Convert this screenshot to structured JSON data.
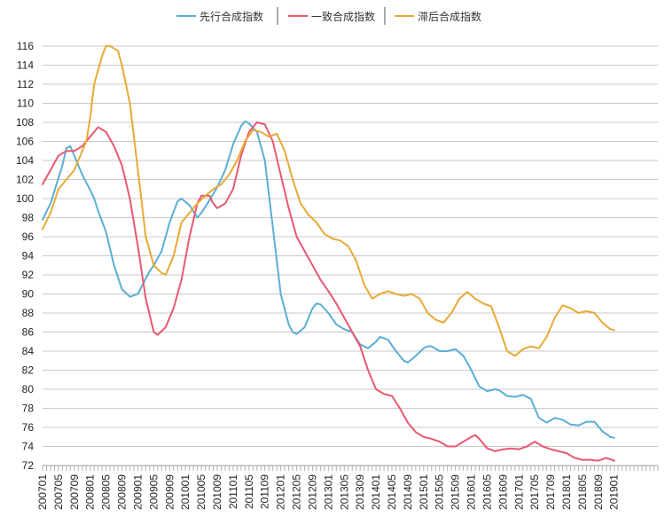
{
  "chart_data": {
    "type": "line",
    "title": "",
    "xlabel": "",
    "ylabel": "",
    "ylim": [
      72,
      116
    ],
    "y_ticks": [
      72,
      74,
      76,
      78,
      80,
      82,
      84,
      86,
      88,
      90,
      92,
      94,
      96,
      98,
      100,
      102,
      104,
      106,
      108,
      110,
      112,
      114,
      116
    ],
    "x_start": "2007-01",
    "x_end": "2019-12",
    "x_tick_labels": [
      "200701",
      "200705",
      "200709",
      "200801",
      "200805",
      "200809",
      "200901",
      "200905",
      "200909",
      "201001",
      "201005",
      "201009",
      "201101",
      "201105",
      "201109",
      "201201",
      "201205",
      "201209",
      "201301",
      "201305",
      "201309",
      "201401",
      "201405",
      "201409",
      "201501",
      "201505",
      "201509",
      "201601",
      "201605",
      "201609",
      "201701",
      "201705",
      "201709",
      "201801",
      "201805",
      "201809",
      "201901"
    ],
    "grid": "horizontal",
    "legend_position": "top-center",
    "series": [
      {
        "name": "先行合成指数",
        "color": "#5aaed6",
        "points": [
          [
            "2007-01",
            97.8
          ],
          [
            "2007-03",
            99.5
          ],
          [
            "2007-06",
            103.5
          ],
          [
            "2007-07",
            105.3
          ],
          [
            "2007-08",
            105.5
          ],
          [
            "2007-09",
            104.5
          ],
          [
            "2007-11",
            102.5
          ],
          [
            "2008-01",
            100.9
          ],
          [
            "2008-02",
            100.0
          ],
          [
            "2008-03",
            98.7
          ],
          [
            "2008-05",
            96.5
          ],
          [
            "2008-07",
            93.0
          ],
          [
            "2008-09",
            90.5
          ],
          [
            "2008-11",
            89.7
          ],
          [
            "2009-01",
            90.0
          ],
          [
            "2009-02",
            90.8
          ],
          [
            "2009-04",
            92.4
          ],
          [
            "2009-05",
            93.0
          ],
          [
            "2009-07",
            94.5
          ],
          [
            "2009-09",
            97.5
          ],
          [
            "2009-11",
            99.7
          ],
          [
            "2009-12",
            100.0
          ],
          [
            "2010-02",
            99.3
          ],
          [
            "2010-04",
            98.0
          ],
          [
            "2010-05",
            98.5
          ],
          [
            "2010-07",
            99.8
          ],
          [
            "2010-09",
            101.2
          ],
          [
            "2010-11",
            103.0
          ],
          [
            "2011-01",
            105.7
          ],
          [
            "2011-03",
            107.6
          ],
          [
            "2011-04",
            108.1
          ],
          [
            "2011-05",
            107.9
          ],
          [
            "2011-07",
            107.0
          ],
          [
            "2011-09",
            104.0
          ],
          [
            "2011-11",
            97.0
          ],
          [
            "2012-01",
            90.0
          ],
          [
            "2012-03",
            86.8
          ],
          [
            "2012-04",
            86.0
          ],
          [
            "2012-05",
            85.8
          ],
          [
            "2012-07",
            86.5
          ],
          [
            "2012-08",
            87.5
          ],
          [
            "2012-09",
            88.5
          ],
          [
            "2012-10",
            89.0
          ],
          [
            "2012-11",
            88.9
          ],
          [
            "2013-01",
            88.0
          ],
          [
            "2013-03",
            86.8
          ],
          [
            "2013-05",
            86.3
          ],
          [
            "2013-07",
            86.0
          ],
          [
            "2013-09",
            84.7
          ],
          [
            "2013-11",
            84.3
          ],
          [
            "2014-01",
            85.0
          ],
          [
            "2014-02",
            85.5
          ],
          [
            "2014-04",
            85.2
          ],
          [
            "2014-06",
            84.0
          ],
          [
            "2014-08",
            83.0
          ],
          [
            "2014-09",
            82.8
          ],
          [
            "2014-11",
            83.5
          ],
          [
            "2015-01",
            84.3
          ],
          [
            "2015-02",
            84.5
          ],
          [
            "2015-03",
            84.5
          ],
          [
            "2015-05",
            84.0
          ],
          [
            "2015-07",
            84.0
          ],
          [
            "2015-09",
            84.2
          ],
          [
            "2015-11",
            83.5
          ],
          [
            "2016-01",
            82.0
          ],
          [
            "2016-03",
            80.3
          ],
          [
            "2016-05",
            79.8
          ],
          [
            "2016-07",
            80.0
          ],
          [
            "2016-08",
            79.9
          ],
          [
            "2016-10",
            79.3
          ],
          [
            "2016-12",
            79.2
          ],
          [
            "2017-02",
            79.4
          ],
          [
            "2017-04",
            79.0
          ],
          [
            "2017-06",
            77.0
          ],
          [
            "2017-08",
            76.5
          ],
          [
            "2017-10",
            77.0
          ],
          [
            "2017-12",
            76.8
          ],
          [
            "2018-02",
            76.3
          ],
          [
            "2018-04",
            76.2
          ],
          [
            "2018-06",
            76.6
          ],
          [
            "2018-08",
            76.6
          ],
          [
            "2018-10",
            75.6
          ],
          [
            "2018-12",
            75.0
          ],
          [
            "2019-01",
            74.9
          ]
        ]
      },
      {
        "name": "一致合成指数",
        "color": "#e8586f",
        "points": [
          [
            "2007-01",
            101.5
          ],
          [
            "2007-03",
            103.0
          ],
          [
            "2007-05",
            104.5
          ],
          [
            "2007-07",
            105.0
          ],
          [
            "2007-09",
            105.0
          ],
          [
            "2007-11",
            105.5
          ],
          [
            "2008-01",
            106.5
          ],
          [
            "2008-03",
            107.5
          ],
          [
            "2008-05",
            107.0
          ],
          [
            "2008-07",
            105.5
          ],
          [
            "2008-09",
            103.5
          ],
          [
            "2008-11",
            100.0
          ],
          [
            "2009-01",
            95.0
          ],
          [
            "2009-03",
            89.5
          ],
          [
            "2009-05",
            86.0
          ],
          [
            "2009-06",
            85.7
          ],
          [
            "2009-08",
            86.5
          ],
          [
            "2009-10",
            88.5
          ],
          [
            "2009-12",
            91.5
          ],
          [
            "2010-02",
            96.0
          ],
          [
            "2010-04",
            99.5
          ],
          [
            "2010-05",
            100.3
          ],
          [
            "2010-07",
            100.3
          ],
          [
            "2010-08",
            99.5
          ],
          [
            "2010-09",
            99.0
          ],
          [
            "2010-11",
            99.5
          ],
          [
            "2011-01",
            101.0
          ],
          [
            "2011-03",
            104.5
          ],
          [
            "2011-05",
            107.0
          ],
          [
            "2011-07",
            108.0
          ],
          [
            "2011-09",
            107.8
          ],
          [
            "2011-11",
            106.0
          ],
          [
            "2012-01",
            102.5
          ],
          [
            "2012-03",
            99.0
          ],
          [
            "2012-05",
            96.0
          ],
          [
            "2012-07",
            94.5
          ],
          [
            "2012-09",
            93.0
          ],
          [
            "2012-11",
            91.5
          ],
          [
            "2013-01",
            90.3
          ],
          [
            "2013-03",
            89.0
          ],
          [
            "2013-05",
            87.5
          ],
          [
            "2013-07",
            86.0
          ],
          [
            "2013-09",
            84.5
          ],
          [
            "2013-11",
            82.0
          ],
          [
            "2014-01",
            80.0
          ],
          [
            "2014-03",
            79.5
          ],
          [
            "2014-05",
            79.3
          ],
          [
            "2014-07",
            78.0
          ],
          [
            "2014-09",
            76.5
          ],
          [
            "2014-11",
            75.5
          ],
          [
            "2015-01",
            75.0
          ],
          [
            "2015-03",
            74.8
          ],
          [
            "2015-05",
            74.5
          ],
          [
            "2015-07",
            74.0
          ],
          [
            "2015-09",
            74.0
          ],
          [
            "2015-11",
            74.5
          ],
          [
            "2016-01",
            75.0
          ],
          [
            "2016-02",
            75.2
          ],
          [
            "2016-03",
            74.8
          ],
          [
            "2016-05",
            73.8
          ],
          [
            "2016-07",
            73.5
          ],
          [
            "2016-09",
            73.7
          ],
          [
            "2016-11",
            73.8
          ],
          [
            "2017-01",
            73.7
          ],
          [
            "2017-03",
            74.0
          ],
          [
            "2017-05",
            74.5
          ],
          [
            "2017-07",
            74.0
          ],
          [
            "2017-09",
            73.7
          ],
          [
            "2017-11",
            73.5
          ],
          [
            "2018-01",
            73.3
          ],
          [
            "2018-03",
            72.8
          ],
          [
            "2018-05",
            72.6
          ],
          [
            "2018-07",
            72.6
          ],
          [
            "2018-09",
            72.5
          ],
          [
            "2018-11",
            72.8
          ],
          [
            "2019-01",
            72.5
          ]
        ]
      },
      {
        "name": "滞后合成指数",
        "color": "#e8a936",
        "points": [
          [
            "2007-01",
            96.8
          ],
          [
            "2007-03",
            98.5
          ],
          [
            "2007-05",
            101.0
          ],
          [
            "2007-07",
            102.0
          ],
          [
            "2007-09",
            103.0
          ],
          [
            "2007-10",
            104.0
          ],
          [
            "2007-12",
            106.0
          ],
          [
            "2008-01",
            108.5
          ],
          [
            "2008-02",
            112.0
          ],
          [
            "2008-04",
            115.0
          ],
          [
            "2008-05",
            116.0
          ],
          [
            "2008-06",
            116.0
          ],
          [
            "2008-08",
            115.5
          ],
          [
            "2008-09",
            114.0
          ],
          [
            "2008-11",
            110.0
          ],
          [
            "2009-01",
            103.0
          ],
          [
            "2009-03",
            96.0
          ],
          [
            "2009-05",
            93.0
          ],
          [
            "2009-07",
            92.2
          ],
          [
            "2009-08",
            92.0
          ],
          [
            "2009-10",
            94.0
          ],
          [
            "2009-12",
            97.5
          ],
          [
            "2010-02",
            98.5
          ],
          [
            "2010-04",
            99.5
          ],
          [
            "2010-06",
            100.3
          ],
          [
            "2010-08",
            101.0
          ],
          [
            "2010-10",
            101.5
          ],
          [
            "2010-12",
            102.5
          ],
          [
            "2011-02",
            104.0
          ],
          [
            "2011-04",
            106.0
          ],
          [
            "2011-06",
            107.2
          ],
          [
            "2011-08",
            107.0
          ],
          [
            "2011-10",
            106.5
          ],
          [
            "2011-12",
            106.8
          ],
          [
            "2012-02",
            105.0
          ],
          [
            "2012-04",
            102.0
          ],
          [
            "2012-06",
            99.5
          ],
          [
            "2012-08",
            98.3
          ],
          [
            "2012-10",
            97.5
          ],
          [
            "2012-12",
            96.3
          ],
          [
            "2013-02",
            95.8
          ],
          [
            "2013-04",
            95.6
          ],
          [
            "2013-06",
            95.0
          ],
          [
            "2013-08",
            93.5
          ],
          [
            "2013-10",
            91.0
          ],
          [
            "2013-12",
            89.5
          ],
          [
            "2014-02",
            90.0
          ],
          [
            "2014-04",
            90.3
          ],
          [
            "2014-06",
            90.0
          ],
          [
            "2014-08",
            89.8
          ],
          [
            "2014-10",
            90.0
          ],
          [
            "2014-12",
            89.5
          ],
          [
            "2015-02",
            88.0
          ],
          [
            "2015-04",
            87.3
          ],
          [
            "2015-06",
            87.0
          ],
          [
            "2015-08",
            88.0
          ],
          [
            "2015-10",
            89.5
          ],
          [
            "2015-12",
            90.2
          ],
          [
            "2016-02",
            89.5
          ],
          [
            "2016-04",
            89.0
          ],
          [
            "2016-06",
            88.7
          ],
          [
            "2016-08",
            86.5
          ],
          [
            "2016-10",
            84.0
          ],
          [
            "2016-12",
            83.5
          ],
          [
            "2017-02",
            84.2
          ],
          [
            "2017-04",
            84.5
          ],
          [
            "2017-06",
            84.3
          ],
          [
            "2017-08",
            85.5
          ],
          [
            "2017-10",
            87.5
          ],
          [
            "2017-12",
            88.8
          ],
          [
            "2018-02",
            88.5
          ],
          [
            "2018-04",
            88.0
          ],
          [
            "2018-06",
            88.2
          ],
          [
            "2018-08",
            88.0
          ],
          [
            "2018-10",
            87.0
          ],
          [
            "2018-12",
            86.3
          ],
          [
            "2019-01",
            86.2
          ]
        ]
      }
    ]
  }
}
